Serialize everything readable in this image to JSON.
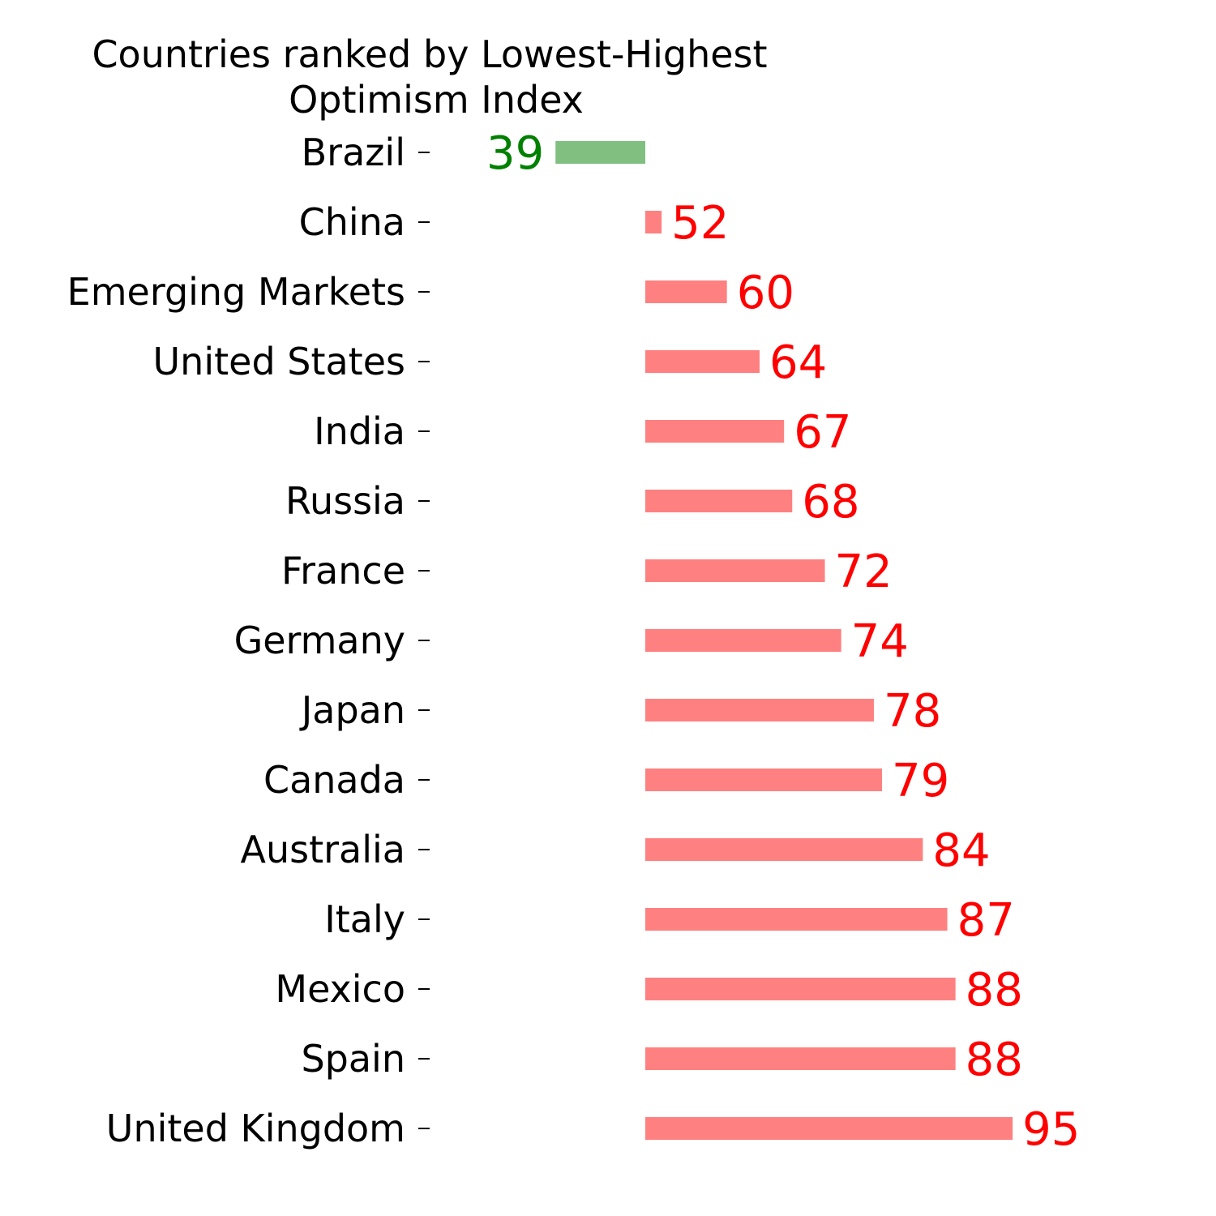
{
  "chart_data": {
    "type": "bar",
    "orientation": "horizontal",
    "title_lines": [
      "Countries ranked by Lowest-Highest",
      "Optimism Index"
    ],
    "baseline": 50,
    "categories": [
      "Brazil",
      "China",
      "Emerging Markets",
      "United States",
      "India",
      "Russia",
      "France",
      "Germany",
      "Japan",
      "Canada",
      "Australia",
      "Italy",
      "Mexico",
      "Spain",
      "United Kingdom"
    ],
    "values": [
      39,
      52,
      60,
      64,
      67,
      68,
      72,
      74,
      78,
      79,
      84,
      87,
      88,
      88,
      95
    ],
    "labels": [
      "39",
      "52",
      "60",
      "64",
      "67",
      "68",
      "72",
      "74",
      "78",
      "79",
      "84",
      "87",
      "88",
      "88",
      "95"
    ],
    "colors": {
      "below_bar": "#80bf80",
      "below_text": "#008000",
      "above_bar": "#ff8080",
      "above_text": "#ff0000"
    },
    "grid": false,
    "legend": "none"
  }
}
